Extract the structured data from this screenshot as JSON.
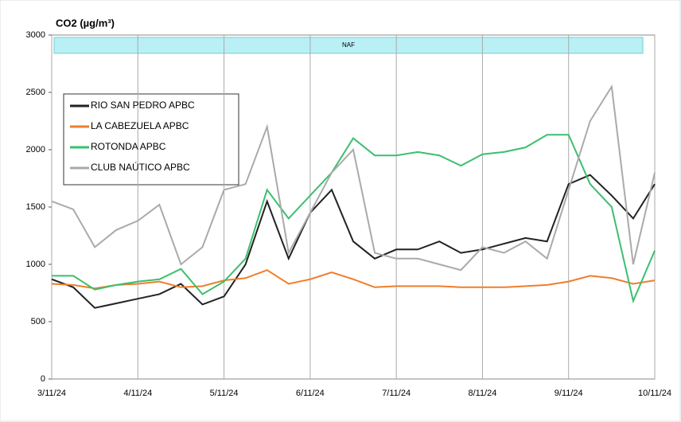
{
  "chart_data": {
    "type": "line",
    "title": "CO2 (µg/m³)",
    "annotation": "NAF",
    "x": [
      0,
      0.25,
      0.5,
      0.75,
      1,
      1.25,
      1.5,
      1.75,
      2,
      2.25,
      2.5,
      2.75,
      3,
      3.25,
      3.5,
      3.75,
      4,
      4.25,
      4.5,
      4.75,
      5,
      5.25,
      5.5,
      5.75,
      6,
      6.25,
      6.5,
      6.75,
      7
    ],
    "xlim": [
      0,
      7
    ],
    "xticks": [
      {
        "value": 0,
        "label": "3/11/24"
      },
      {
        "value": 1,
        "label": "4/11/24"
      },
      {
        "value": 2,
        "label": "5/11/24"
      },
      {
        "value": 3,
        "label": "6/11/24"
      },
      {
        "value": 4,
        "label": "7/11/24"
      },
      {
        "value": 5,
        "label": "8/11/24"
      },
      {
        "value": 6,
        "label": "9/11/24"
      },
      {
        "value": 7,
        "label": "10/11/24"
      }
    ],
    "ylim": [
      0,
      3000
    ],
    "yticks": [
      0,
      500,
      1000,
      1500,
      2000,
      2500,
      3000
    ],
    "grid": true,
    "legend": "upper left",
    "series": [
      {
        "name": "RIO SAN PEDRO APBC",
        "color": "#222222",
        "values": [
          870,
          800,
          620,
          660,
          700,
          740,
          830,
          650,
          720,
          1000,
          1550,
          1050,
          1450,
          1650,
          1200,
          1050,
          1130,
          1130,
          1200,
          1100,
          1130,
          1180,
          1230,
          1200,
          1700,
          1780,
          1600,
          1400,
          1700
        ]
      },
      {
        "name": "LA CABEZUELA  APBC",
        "color": "#f07d2a",
        "values": [
          830,
          820,
          790,
          820,
          830,
          850,
          800,
          810,
          860,
          880,
          950,
          830,
          870,
          930,
          870,
          800,
          810,
          810,
          810,
          800,
          800,
          800,
          810,
          820,
          850,
          900,
          880,
          830,
          860
        ]
      },
      {
        "name": "ROTONDA  APBC",
        "color": "#3cbf6e",
        "values": [
          900,
          900,
          780,
          820,
          850,
          870,
          960,
          740,
          850,
          1050,
          1650,
          1400,
          1600,
          1800,
          2100,
          1950,
          1950,
          1980,
          1950,
          1860,
          1960,
          1980,
          2020,
          2130,
          2130,
          1700,
          1500,
          680,
          1120
        ]
      },
      {
        "name": "CLUB NAÚTICO  APBC",
        "color": "#aaaaaa",
        "values": [
          1550,
          1480,
          1150,
          1300,
          1380,
          1520,
          1000,
          1150,
          1650,
          1700,
          2200,
          1100,
          1450,
          1800,
          2000,
          1100,
          1050,
          1050,
          1000,
          950,
          1150,
          1100,
          1200,
          1050,
          1650,
          2250,
          2550,
          1000,
          1800
        ]
      }
    ]
  }
}
